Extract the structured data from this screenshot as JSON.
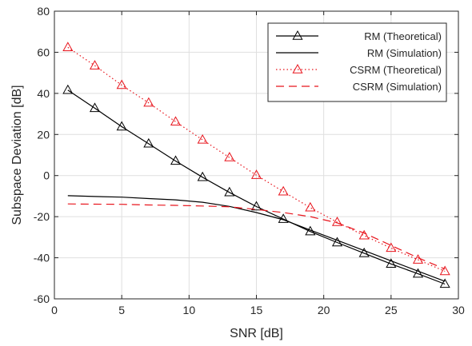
{
  "chart_data": {
    "type": "line",
    "xlabel": "SNR [dB]",
    "ylabel": "Subspace Deviation [dB]",
    "xlim": [
      0,
      30
    ],
    "ylim": [
      -60,
      80
    ],
    "xticks": [
      0,
      5,
      10,
      15,
      20,
      25,
      30
    ],
    "yticks": [
      -60,
      -40,
      -20,
      0,
      20,
      40,
      60,
      80
    ],
    "grid": true,
    "legend_position": "top-right",
    "series": [
      {
        "name": "RM (Theoretical)",
        "color": "#000000",
        "line_style": "solid",
        "marker": "triangle",
        "x": [
          1,
          3,
          5,
          7,
          9,
          11,
          13,
          15,
          17,
          19,
          21,
          23,
          25,
          27,
          29
        ],
        "y": [
          41.6,
          32.8,
          23.8,
          15.5,
          7.1,
          -0.8,
          -8.2,
          -15.1,
          -21.2,
          -27.2,
          -32.6,
          -37.8,
          -43.0,
          -47.8,
          -52.8
        ]
      },
      {
        "name": "RM (Simulation)",
        "color": "#000000",
        "line_style": "solid",
        "marker": "none",
        "x": [
          1,
          3,
          5,
          7,
          9,
          11,
          13,
          15,
          17,
          19,
          21,
          23,
          25,
          27,
          29
        ],
        "y": [
          -9.8,
          -10.2,
          -10.5,
          -11.2,
          -11.8,
          -13.0,
          -15.0,
          -18.0,
          -21.5,
          -26.5,
          -31.5,
          -36.5,
          -41.5,
          -46.5,
          -51.5
        ]
      },
      {
        "name": "CSRM (Theoretical)",
        "color": "#e8141c",
        "line_style": "dotted",
        "marker": "triangle",
        "x": [
          1,
          3,
          5,
          7,
          9,
          11,
          13,
          15,
          17,
          19,
          21,
          23,
          25,
          27,
          29
        ],
        "y": [
          62.4,
          53.5,
          44.0,
          35.4,
          26.2,
          17.4,
          8.8,
          0.2,
          -7.8,
          -15.6,
          -22.7,
          -29.2,
          -35.3,
          -41.0,
          -46.6
        ]
      },
      {
        "name": "CSRM (Simulation)",
        "color": "#e8141c",
        "line_style": "dashed",
        "marker": "none",
        "x": [
          1,
          3,
          5,
          7,
          9,
          11,
          13,
          15,
          17,
          19,
          21,
          23,
          25,
          27,
          29
        ],
        "y": [
          -13.8,
          -13.9,
          -14.0,
          -14.3,
          -14.5,
          -14.8,
          -15.2,
          -16.5,
          -18.0,
          -20.0,
          -23.0,
          -28.0,
          -34.0,
          -40.0,
          -45.5
        ]
      }
    ]
  }
}
